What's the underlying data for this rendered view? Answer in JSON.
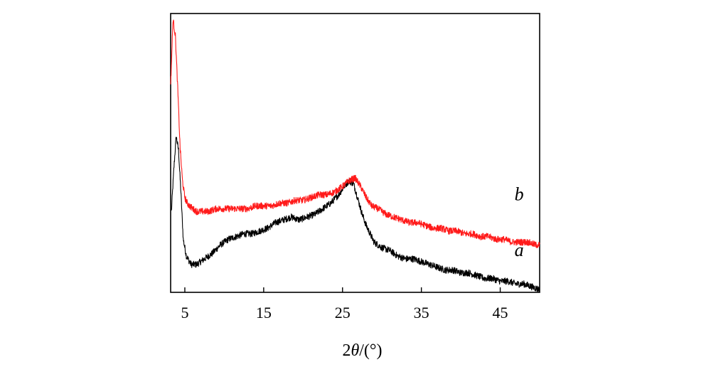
{
  "chart_data": {
    "type": "line",
    "title": "",
    "xlabel_parts": [
      "2",
      "θ",
      "/(°)"
    ],
    "ylabel": "",
    "xlim": [
      3.2,
      50
    ],
    "ylim": [
      0,
      1
    ],
    "xticks": [
      5,
      15,
      25,
      35,
      45
    ],
    "xtick_labels": [
      "5",
      "15",
      "25",
      "35",
      "45"
    ],
    "y_ticks_shown": false,
    "grid": false,
    "legend": "none; curves labelled inline at right",
    "noise": 0.012,
    "series": [
      {
        "name": "a",
        "color": "#000000",
        "x": [
          3.3,
          3.6,
          3.9,
          4.2,
          4.5,
          4.8,
          5.2,
          5.8,
          6.5,
          7.5,
          8.5,
          9.5,
          10.5,
          11.5,
          12.5,
          13.5,
          14.5,
          15.5,
          16.5,
          17.5,
          18.5,
          19.5,
          20.5,
          21.5,
          22.5,
          23.5,
          24.5,
          25.2,
          25.8,
          26.4,
          27.0,
          27.5,
          28.0,
          28.5,
          29.0,
          30.0,
          31.0,
          32.0,
          33.0,
          34.0,
          35.0,
          36.0,
          37.0,
          38.0,
          39.0,
          40.0,
          41.0,
          42.0,
          43.0,
          44.0,
          45.0,
          46.0,
          47.0,
          48.0,
          49.0,
          50.0
        ],
        "y": [
          0.29,
          0.44,
          0.56,
          0.51,
          0.36,
          0.19,
          0.13,
          0.1,
          0.1,
          0.12,
          0.14,
          0.17,
          0.19,
          0.2,
          0.21,
          0.21,
          0.22,
          0.23,
          0.25,
          0.26,
          0.27,
          0.26,
          0.27,
          0.28,
          0.3,
          0.32,
          0.35,
          0.38,
          0.4,
          0.39,
          0.33,
          0.28,
          0.24,
          0.21,
          0.18,
          0.16,
          0.15,
          0.13,
          0.12,
          0.12,
          0.11,
          0.1,
          0.09,
          0.08,
          0.08,
          0.07,
          0.07,
          0.06,
          0.05,
          0.05,
          0.04,
          0.04,
          0.03,
          0.03,
          0.02,
          0.01
        ]
      },
      {
        "name": "b",
        "color": "#ff1a1a",
        "x": [
          3.2,
          3.5,
          3.8,
          4.1,
          4.4,
          4.7,
          5.0,
          5.3,
          5.6,
          6.0,
          6.5,
          7.0,
          8.0,
          9.0,
          10.0,
          11.0,
          12.0,
          13.0,
          14.0,
          15.0,
          16.0,
          17.0,
          18.0,
          19.0,
          20.0,
          21.0,
          22.0,
          23.0,
          24.0,
          25.0,
          25.8,
          26.6,
          27.3,
          28.0,
          28.7,
          29.5,
          30.5,
          31.5,
          32.5,
          33.5,
          34.5,
          35.5,
          36.5,
          37.5,
          38.5,
          39.5,
          40.5,
          41.5,
          42.5,
          43.5,
          44.5,
          45.5,
          46.5,
          47.5,
          48.5,
          49.5,
          50.0
        ],
        "y": [
          0.74,
          0.98,
          0.92,
          0.73,
          0.52,
          0.4,
          0.34,
          0.32,
          0.31,
          0.3,
          0.29,
          0.29,
          0.29,
          0.3,
          0.3,
          0.3,
          0.3,
          0.3,
          0.31,
          0.31,
          0.31,
          0.32,
          0.32,
          0.33,
          0.33,
          0.34,
          0.35,
          0.35,
          0.36,
          0.38,
          0.4,
          0.41,
          0.38,
          0.34,
          0.31,
          0.3,
          0.28,
          0.27,
          0.26,
          0.25,
          0.25,
          0.24,
          0.23,
          0.23,
          0.22,
          0.22,
          0.21,
          0.21,
          0.2,
          0.2,
          0.19,
          0.19,
          0.18,
          0.18,
          0.18,
          0.17,
          0.17
        ]
      }
    ],
    "annotations": [
      {
        "text": "b",
        "series": "b",
        "x": 47.4,
        "y": 0.33
      },
      {
        "text": "a",
        "series": "a",
        "x": 47.4,
        "y": 0.13
      }
    ]
  }
}
